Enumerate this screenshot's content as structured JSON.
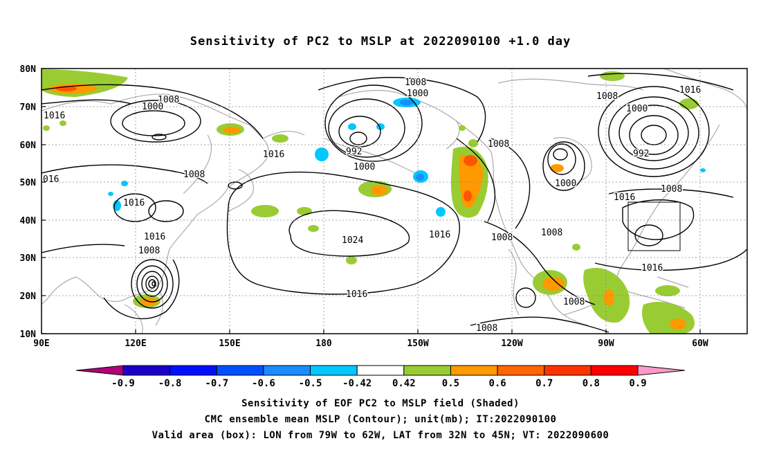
{
  "title": "Sensitivity of PC2 to MSLP at 2022090100 +1.0 day",
  "axes": {
    "lat_labels": [
      "80N",
      "70N",
      "60N",
      "50N",
      "40N",
      "30N",
      "20N",
      "10N"
    ],
    "lon_labels": [
      "90E",
      "120E",
      "150E",
      "180",
      "150W",
      "120W",
      "90W",
      "60W"
    ]
  },
  "contour_labels": [
    "1008",
    "1000",
    "1016",
    "1008",
    "1000",
    "992",
    "1000",
    "1016",
    "1008",
    "1008",
    "1000",
    "992",
    "1016",
    "016",
    "1016",
    "1008",
    "1000",
    "1016",
    "1024",
    "1016",
    "1008",
    "1008",
    "1016",
    "1008",
    "1008",
    "1016",
    "1016",
    "1008"
  ],
  "colorbar": {
    "labels": [
      "-0.9",
      "-0.8",
      "-0.7",
      "-0.6",
      "-0.5",
      "-0.42",
      "0.42",
      "0.5",
      "0.6",
      "0.7",
      "0.8",
      "0.9"
    ],
    "colors": [
      "#b0007a",
      "#1a00c8",
      "#0010ff",
      "#0050ff",
      "#1a8cff",
      "#00c8ff",
      "#ffffff",
      "#99cc33",
      "#ff9900",
      "#ff6600",
      "#ff3300",
      "#ff0000",
      "#ff99cc"
    ]
  },
  "validity_box": {
    "lon_w": 79,
    "lon_e": 62,
    "lat_s": 32,
    "lat_n": 45
  },
  "footer": {
    "line1": "Sensitivity of EOF PC2 to MSLP field (Shaded)",
    "line2": "CMC ensemble mean MSLP (Contour); unit(mb); IT:2022090100",
    "line3": "Valid area (box): LON from 79W to 62W, LAT from 32N to 45N; VT: 2022090600"
  }
}
